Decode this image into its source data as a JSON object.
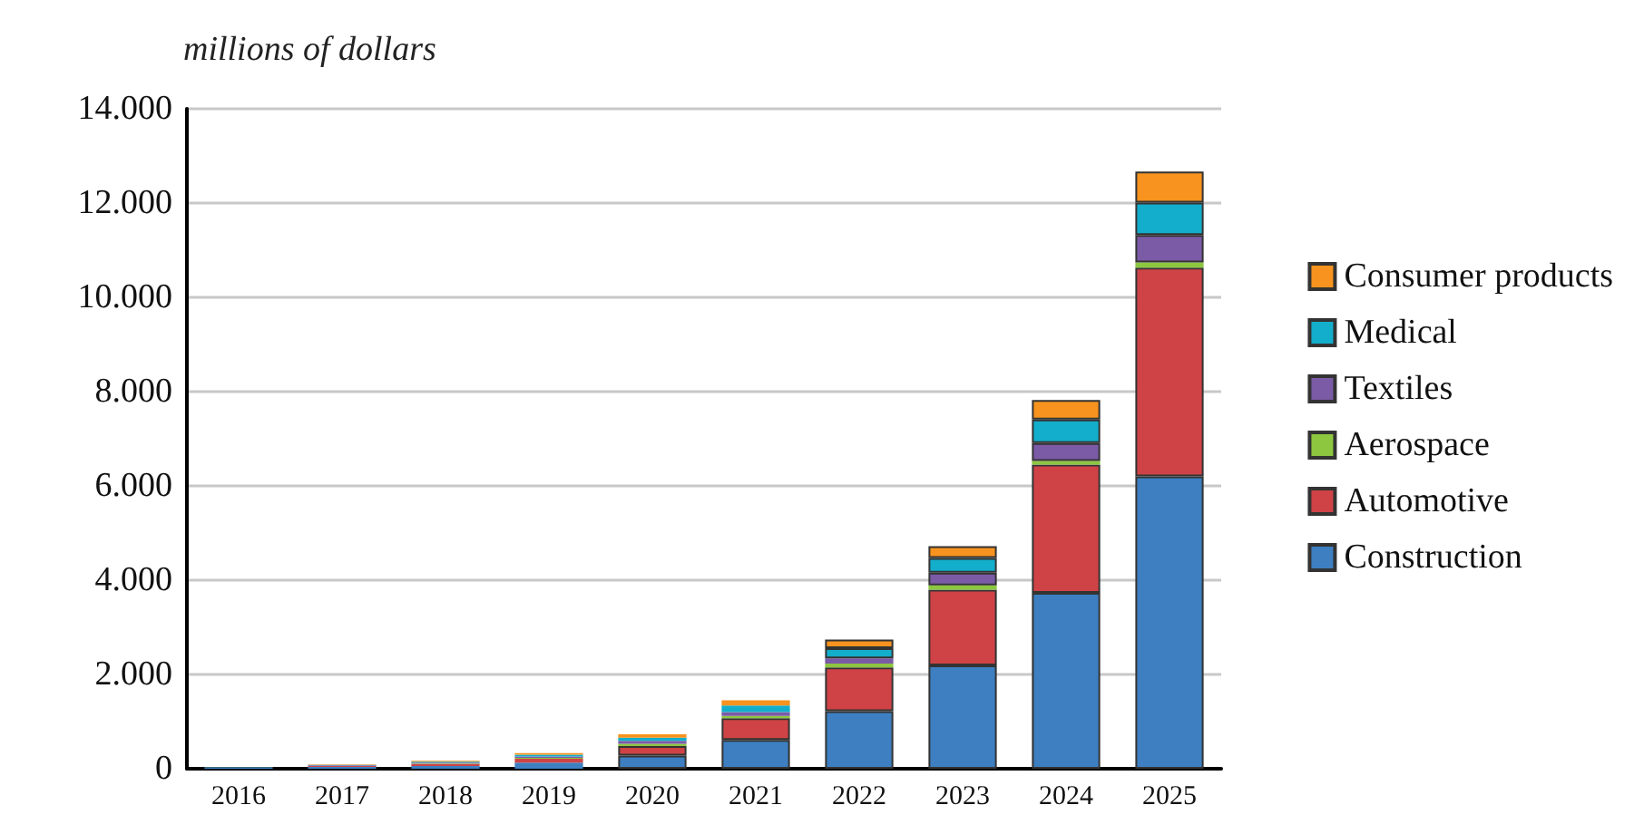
{
  "chart_data": {
    "type": "bar",
    "stacked": true,
    "ylabel": "millions of dollars",
    "categories": [
      "2016",
      "2017",
      "2018",
      "2019",
      "2020",
      "2021",
      "2022",
      "2023",
      "2024",
      "2025"
    ],
    "series": [
      {
        "name": "Construction",
        "color": "#3d7fc1",
        "values": [
          20,
          40,
          60,
          130,
          280,
          610,
          1220,
          2190,
          3730,
          6200
        ]
      },
      {
        "name": "Automotive",
        "color": "#cf4346",
        "values": [
          10,
          20,
          40,
          80,
          200,
          460,
          930,
          1610,
          2720,
          4430
        ]
      },
      {
        "name": "Aerospace",
        "color": "#8dc63f",
        "values": [
          0,
          0,
          10,
          20,
          50,
          50,
          80,
          90,
          80,
          110
        ]
      },
      {
        "name": "Textiles",
        "color": "#7b5ba6",
        "values": [
          0,
          10,
          20,
          30,
          60,
          80,
          110,
          270,
          380,
          580
        ]
      },
      {
        "name": "Medical",
        "color": "#13aecb",
        "values": [
          10,
          10,
          20,
          40,
          70,
          140,
          220,
          310,
          500,
          690
        ]
      },
      {
        "name": "Consumer products",
        "color": "#f7931e",
        "values": [
          0,
          10,
          20,
          30,
          70,
          110,
          180,
          250,
          410,
          660
        ]
      }
    ],
    "ylim": [
      0,
      14000
    ],
    "yticks": [
      0,
      {
        "value": 2000,
        "label": "2.000"
      },
      {
        "value": 4000,
        "label": "4.000"
      },
      {
        "value": 6000,
        "label": "6.000"
      },
      {
        "value": 8000,
        "label": "8.000"
      },
      {
        "value": 10000,
        "label": "10.000"
      },
      {
        "value": 12000,
        "label": "12.000"
      },
      {
        "value": 14000,
        "label": "14.000"
      }
    ],
    "grid": "y",
    "legend": "right"
  }
}
